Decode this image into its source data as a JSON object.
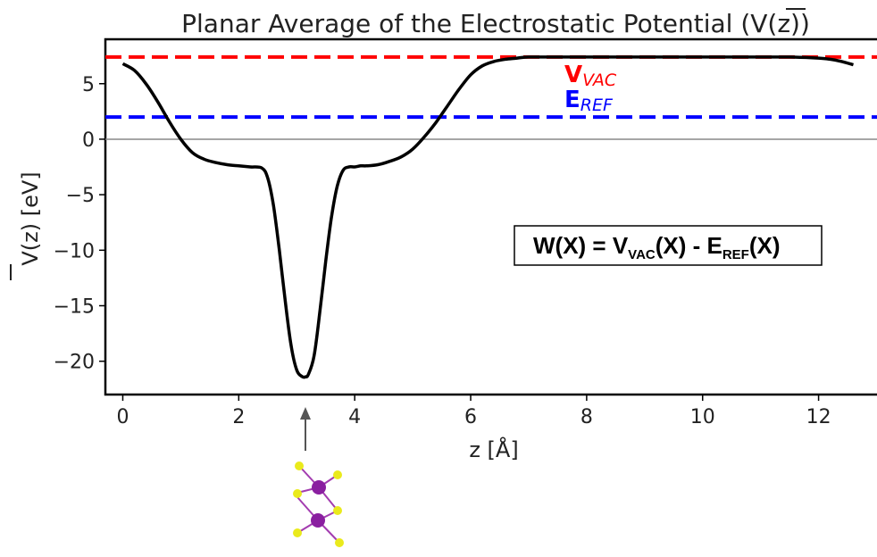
{
  "chart_data": {
    "type": "line",
    "title": "Planar Average of the Electrostatic Potential (V(z))",
    "xlabel": "z [Å]",
    "ylabel": "V(z) [eV]",
    "xlim": [
      -0.3,
      13.1
    ],
    "ylim": [
      -23,
      9
    ],
    "xticks": [
      0,
      2,
      4,
      6,
      8,
      10,
      12
    ],
    "yticks": [
      5,
      0,
      -5,
      -10,
      -15,
      -20
    ],
    "xtick_labels": [
      "0",
      "2",
      "4",
      "6",
      "8",
      "10",
      "12"
    ],
    "ytick_labels": [
      "5",
      "0",
      "−5",
      "−10",
      "−15",
      "−20"
    ],
    "grid": false,
    "series": [
      {
        "color": "#000000",
        "x": [
          0.0,
          0.2,
          0.4,
          0.6,
          0.8,
          1.0,
          1.2,
          1.4,
          1.6,
          1.8,
          2.0,
          2.2,
          2.4,
          2.5,
          2.6,
          2.7,
          2.8,
          2.9,
          3.0,
          3.1,
          3.15,
          3.2,
          3.3,
          3.4,
          3.5,
          3.6,
          3.7,
          3.8,
          3.9,
          4.0,
          4.1,
          4.2,
          4.4,
          4.6,
          4.8,
          5.0,
          5.2,
          5.4,
          5.6,
          5.8,
          6.0,
          6.2,
          6.4,
          6.6,
          6.8,
          7.0,
          7.5,
          8.0,
          8.5,
          9.0,
          9.5,
          10.0,
          10.5,
          11.0,
          11.5,
          12.0,
          12.2,
          12.4,
          12.6
        ],
        "y": [
          6.8,
          6.2,
          5.0,
          3.4,
          1.6,
          0.0,
          -1.2,
          -1.8,
          -2.1,
          -2.3,
          -2.4,
          -2.5,
          -2.6,
          -3.5,
          -6.0,
          -10.0,
          -14.5,
          -18.5,
          -20.8,
          -21.4,
          -21.4,
          -21.2,
          -19.5,
          -15.5,
          -11.0,
          -7.0,
          -4.2,
          -2.8,
          -2.5,
          -2.5,
          -2.4,
          -2.4,
          -2.3,
          -2.0,
          -1.6,
          -0.9,
          0.2,
          1.5,
          3.0,
          4.5,
          5.8,
          6.6,
          7.0,
          7.2,
          7.3,
          7.4,
          7.4,
          7.4,
          7.4,
          7.4,
          7.4,
          7.4,
          7.4,
          7.4,
          7.4,
          7.3,
          7.2,
          7.0,
          6.7
        ]
      }
    ],
    "reference_lines": [
      {
        "y": 7.4,
        "color": "#ff0000",
        "style": "dashed",
        "label_main": "V",
        "label_sub": "VAC"
      },
      {
        "y": 2.0,
        "color": "#0000ff",
        "style": "dashed",
        "label_main": "E",
        "label_sub": "REF"
      },
      {
        "y": 0,
        "color": "#888888",
        "style": "solid"
      }
    ],
    "annotation": {
      "formula_parts": [
        "W(X) = V",
        "VAC",
        "(X) - E",
        "REF",
        "(X)"
      ]
    },
    "arrow_at_x": 3.15
  }
}
